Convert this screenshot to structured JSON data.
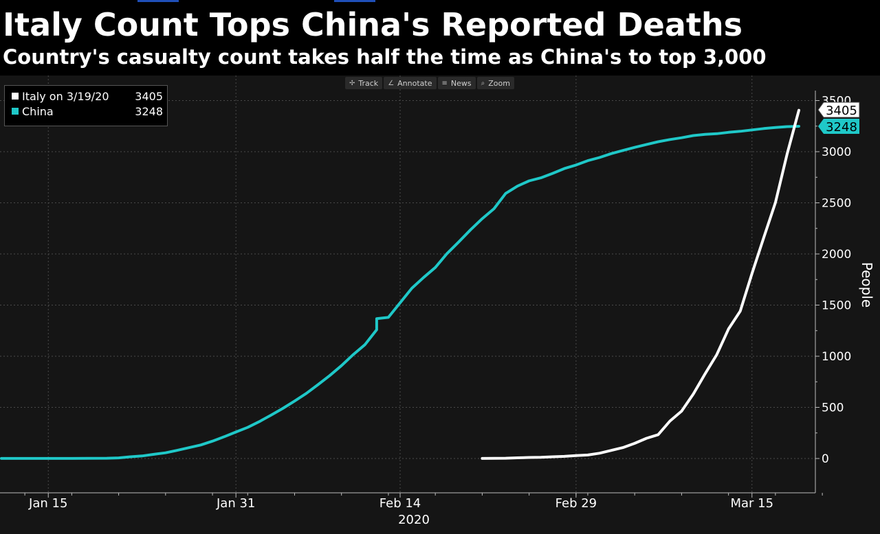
{
  "title": "Italy Count Tops China's Reported Deaths",
  "subtitle": "Country's casualty count takes half the time as China's to top 3,000",
  "toolbar": {
    "items": [
      {
        "label": "Track",
        "icon": "crosshair-icon",
        "glyph": "✢"
      },
      {
        "label": "Annotate",
        "icon": "pencil-icon",
        "glyph": "∠"
      },
      {
        "label": "News",
        "icon": "news-icon",
        "glyph": "≡"
      },
      {
        "label": "Zoom",
        "icon": "magnifier-icon",
        "glyph": "⌕"
      }
    ]
  },
  "legend": {
    "items": [
      {
        "name": "Italy on 3/19/20",
        "value": "3405",
        "color": "#ffffff"
      },
      {
        "name": "China",
        "value": "3248",
        "color": "#1fc8c8"
      }
    ]
  },
  "colors": {
    "background": "#000000",
    "plot_background": "#151515",
    "grid": "#4a4a4a",
    "italy": "#ffffff",
    "china": "#1fc8c8"
  },
  "chart_data": {
    "type": "line",
    "title": "Italy Count Tops China's Reported Deaths",
    "subtitle": "Country's casualty count takes half the time as China's to top 3,000",
    "ylabel": "People",
    "xlabel": "2020",
    "x_tick_labels": [
      "Jan 15",
      "Jan 31",
      "Feb 14",
      "Feb 29",
      "Mar 15"
    ],
    "x_tick_dates": [
      "2020-01-15",
      "2020-01-31",
      "2020-02-14",
      "2020-02-29",
      "2020-03-15"
    ],
    "x_range": [
      "2020-01-11",
      "2020-03-22"
    ],
    "y_ticks": [
      0,
      500,
      1000,
      1500,
      2000,
      2500,
      3000,
      3500
    ],
    "ylim": [
      -330,
      3650
    ],
    "y_axis_position": "right",
    "grid": true,
    "legend_position": "top-left",
    "series": [
      {
        "name": "China",
        "color": "#1fc8c8",
        "last_value": "3248",
        "points": [
          [
            "2020-01-11",
            1
          ],
          [
            "2020-01-14",
            1
          ],
          [
            "2020-01-17",
            1
          ],
          [
            "2020-01-20",
            3
          ],
          [
            "2020-01-21",
            6
          ],
          [
            "2020-01-22",
            17
          ],
          [
            "2020-01-23",
            25
          ],
          [
            "2020-01-24",
            41
          ],
          [
            "2020-01-25",
            56
          ],
          [
            "2020-01-26",
            80
          ],
          [
            "2020-01-27",
            106
          ],
          [
            "2020-01-28",
            132
          ],
          [
            "2020-01-29",
            170
          ],
          [
            "2020-01-30",
            213
          ],
          [
            "2020-01-31",
            259
          ],
          [
            "2020-02-01",
            304
          ],
          [
            "2020-02-02",
            361
          ],
          [
            "2020-02-03",
            425
          ],
          [
            "2020-02-04",
            490
          ],
          [
            "2020-02-05",
            562
          ],
          [
            "2020-02-06",
            636
          ],
          [
            "2020-02-07",
            722
          ],
          [
            "2020-02-08",
            811
          ],
          [
            "2020-02-09",
            908
          ],
          [
            "2020-02-10",
            1016
          ],
          [
            "2020-02-11",
            1113
          ],
          [
            "2020-02-12",
            1259
          ],
          [
            "2020-02-12",
            1368
          ],
          [
            "2020-02-13",
            1380
          ],
          [
            "2020-02-14",
            1523
          ],
          [
            "2020-02-15",
            1665
          ],
          [
            "2020-02-16",
            1770
          ],
          [
            "2020-02-17",
            1868
          ],
          [
            "2020-02-18",
            2004
          ],
          [
            "2020-02-19",
            2118
          ],
          [
            "2020-02-20",
            2236
          ],
          [
            "2020-02-21",
            2345
          ],
          [
            "2020-02-22",
            2442
          ],
          [
            "2020-02-23",
            2592
          ],
          [
            "2020-02-24",
            2663
          ],
          [
            "2020-02-25",
            2715
          ],
          [
            "2020-02-26",
            2744
          ],
          [
            "2020-02-27",
            2788
          ],
          [
            "2020-02-28",
            2835
          ],
          [
            "2020-02-29",
            2870
          ],
          [
            "2020-03-01",
            2912
          ],
          [
            "2020-03-02",
            2943
          ],
          [
            "2020-03-03",
            2981
          ],
          [
            "2020-03-04",
            3012
          ],
          [
            "2020-03-05",
            3042
          ],
          [
            "2020-03-06",
            3070
          ],
          [
            "2020-03-07",
            3097
          ],
          [
            "2020-03-08",
            3119
          ],
          [
            "2020-03-09",
            3136
          ],
          [
            "2020-03-10",
            3158
          ],
          [
            "2020-03-11",
            3169
          ],
          [
            "2020-03-12",
            3176
          ],
          [
            "2020-03-13",
            3189
          ],
          [
            "2020-03-14",
            3199
          ],
          [
            "2020-03-15",
            3213
          ],
          [
            "2020-03-16",
            3226
          ],
          [
            "2020-03-17",
            3237
          ],
          [
            "2020-03-18",
            3245
          ],
          [
            "2020-03-19",
            3248
          ]
        ]
      },
      {
        "name": "Italy on 3/19/20",
        "color": "#ffffff",
        "last_value": "3405",
        "points": [
          [
            "2020-02-21",
            1
          ],
          [
            "2020-02-22",
            2
          ],
          [
            "2020-02-23",
            3
          ],
          [
            "2020-02-24",
            7
          ],
          [
            "2020-02-25",
            10
          ],
          [
            "2020-02-26",
            12
          ],
          [
            "2020-02-27",
            17
          ],
          [
            "2020-02-28",
            21
          ],
          [
            "2020-02-29",
            29
          ],
          [
            "2020-03-01",
            34
          ],
          [
            "2020-03-02",
            52
          ],
          [
            "2020-03-03",
            79
          ],
          [
            "2020-03-04",
            107
          ],
          [
            "2020-03-05",
            148
          ],
          [
            "2020-03-06",
            197
          ],
          [
            "2020-03-07",
            233
          ],
          [
            "2020-03-08",
            366
          ],
          [
            "2020-03-09",
            463
          ],
          [
            "2020-03-10",
            631
          ],
          [
            "2020-03-11",
            827
          ],
          [
            "2020-03-12",
            1016
          ],
          [
            "2020-03-13",
            1266
          ],
          [
            "2020-03-14",
            1441
          ],
          [
            "2020-03-15",
            1809
          ],
          [
            "2020-03-16",
            2158
          ],
          [
            "2020-03-17",
            2503
          ],
          [
            "2020-03-18",
            2978
          ],
          [
            "2020-03-19",
            3405
          ]
        ]
      }
    ]
  }
}
